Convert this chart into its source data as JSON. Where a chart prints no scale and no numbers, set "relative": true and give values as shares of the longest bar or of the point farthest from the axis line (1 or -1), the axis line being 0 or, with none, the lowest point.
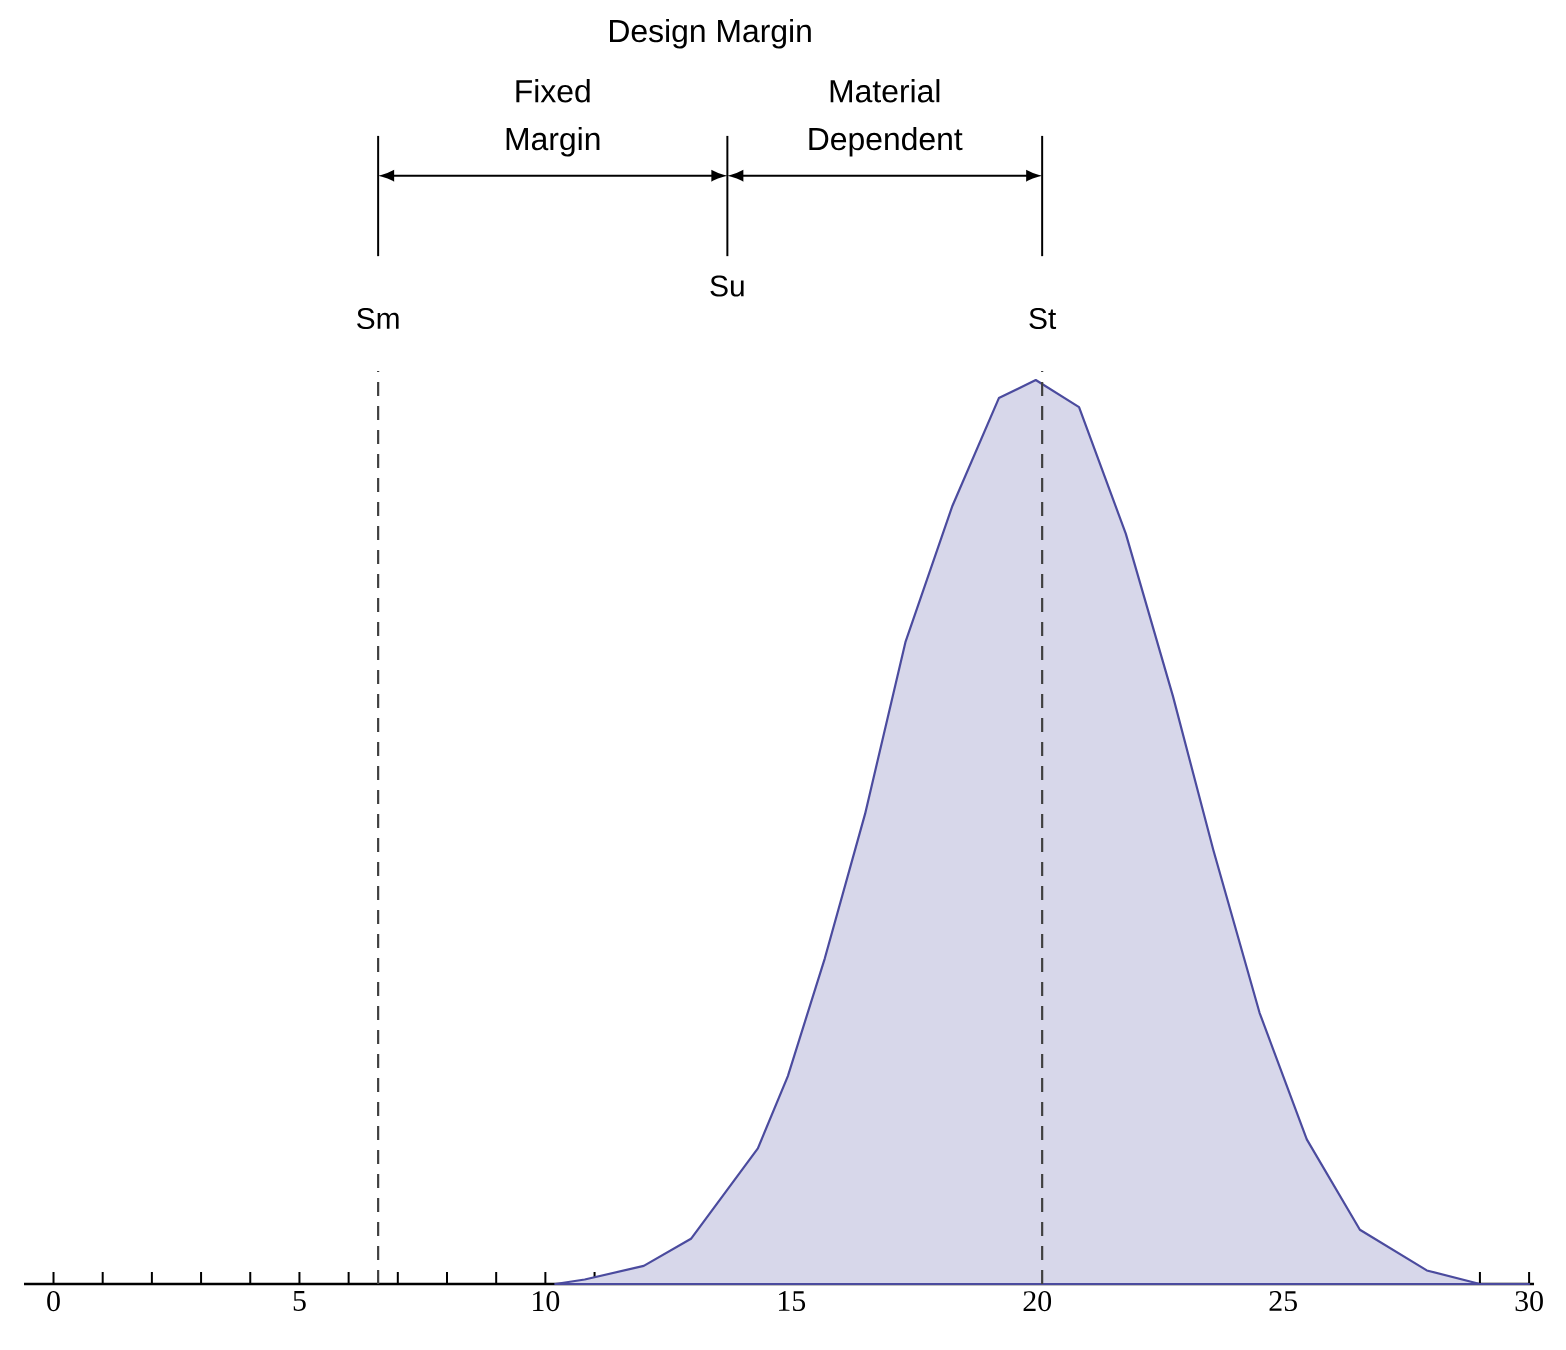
{
  "chart_data": {
    "type": "area",
    "relative": true,
    "x": [
      10.2,
      10.8,
      12.0,
      12.96,
      14.32,
      14.93,
      15.68,
      16.5,
      17.32,
      18.27,
      19.22,
      19.97,
      20.85,
      21.8,
      22.76,
      23.58,
      24.52,
      25.48,
      26.56,
      27.92,
      29.0,
      30.0
    ],
    "values": [
      0,
      0.005,
      0.02,
      0.05,
      0.15,
      0.23,
      0.36,
      0.52,
      0.71,
      0.86,
      0.98,
      1.0,
      0.97,
      0.83,
      0.65,
      0.48,
      0.3,
      0.16,
      0.06,
      0.015,
      0,
      0
    ],
    "color": "#4b4b9e",
    "xlim": [
      -0.6,
      30.1
    ],
    "xticks": [
      0,
      {
        "value": 1,
        "label": null
      },
      {
        "value": 2,
        "label": null
      },
      {
        "value": 3,
        "label": null
      },
      {
        "value": 4,
        "label": null
      },
      5,
      {
        "value": 6,
        "label": null
      },
      {
        "value": 7,
        "label": null
      },
      {
        "value": 8,
        "label": null
      },
      {
        "value": 9,
        "label": null
      },
      10,
      {
        "value": 11,
        "label": null
      },
      {
        "value": 12,
        "label": null
      },
      {
        "value": 13,
        "label": null
      },
      {
        "value": 14,
        "label": null
      },
      15,
      {
        "value": 16,
        "label": null
      },
      {
        "value": 17,
        "label": null
      },
      {
        "value": 18,
        "label": null
      },
      {
        "value": 19,
        "label": null
      },
      20,
      {
        "value": 21,
        "label": null
      },
      {
        "value": 22,
        "label": null
      },
      {
        "value": 23,
        "label": null
      },
      {
        "value": 24,
        "label": null
      },
      25,
      {
        "value": 26,
        "label": null
      },
      {
        "value": 27,
        "label": null
      },
      {
        "value": 28,
        "label": null
      },
      {
        "value": 29,
        "label": null
      },
      30
    ],
    "ref_lines": [
      {
        "axis": "x",
        "value": 6.6,
        "label": "Sm",
        "line_style": "dashed"
      },
      {
        "axis": "x",
        "value": 13.7,
        "label": "Su",
        "line_style": "solid"
      },
      {
        "axis": "x",
        "value": 20.1,
        "label": "St",
        "line_style": "dashed"
      }
    ],
    "annotations": [
      "Design Margin",
      "Fixed Margin",
      "Material Dependent"
    ]
  }
}
